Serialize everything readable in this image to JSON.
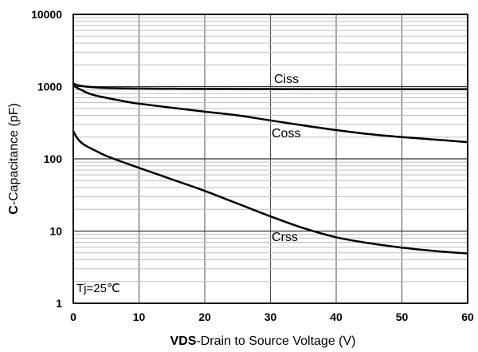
{
  "chart_data": {
    "type": "line",
    "title": "",
    "xlabel_bold": "VDS",
    "xlabel_rest": "-Drain to Source Voltage (V)",
    "ylabel_bold": "C",
    "ylabel_rest": "-Capacitance (pF)",
    "x_scale": "linear",
    "y_scale": "log",
    "xlim": [
      0,
      60
    ],
    "ylim": [
      1,
      10000
    ],
    "x_ticks": [
      "0",
      "10",
      "20",
      "30",
      "40",
      "50",
      "60"
    ],
    "y_ticks": [
      "1",
      "10",
      "100",
      "1000",
      "10000"
    ],
    "grid": true,
    "annotation": "Tj=25℃",
    "series": [
      {
        "name": "Ciss",
        "x": [
          0,
          0.5,
          1,
          2,
          3,
          5,
          8,
          10,
          15,
          20,
          30,
          40,
          50,
          60
        ],
        "y": [
          1100,
          1060,
          1030,
          1000,
          980,
          955,
          945,
          940,
          935,
          930,
          925,
          920,
          920,
          920
        ]
      },
      {
        "name": "Coss",
        "x": [
          0,
          0.5,
          1,
          2,
          3,
          5,
          8,
          10,
          15,
          20,
          25,
          30,
          35,
          40,
          45,
          50,
          55,
          60
        ],
        "y": [
          1050,
          970,
          920,
          830,
          770,
          700,
          620,
          580,
          510,
          450,
          400,
          340,
          290,
          250,
          220,
          200,
          185,
          170
        ]
      },
      {
        "name": "Crss",
        "x": [
          0,
          0.5,
          1,
          1.5,
          2,
          3,
          5,
          8,
          10,
          15,
          20,
          25,
          30,
          35,
          40,
          45,
          50,
          55,
          60
        ],
        "y": [
          240,
          200,
          175,
          160,
          150,
          135,
          110,
          87,
          75,
          52,
          36,
          24,
          16,
          11,
          8.2,
          6.8,
          5.9,
          5.3,
          4.9
        ]
      }
    ]
  }
}
